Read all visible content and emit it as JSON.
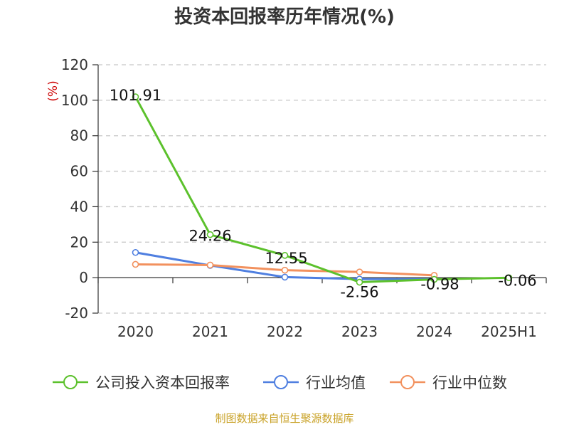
{
  "title": "投资本回报率历年情况(%)",
  "source": "制图数据来自恒生聚源数据库",
  "chart_data": {
    "type": "line",
    "categories": [
      "2020",
      "2021",
      "2022",
      "2023",
      "2024",
      "2025H1"
    ],
    "ylabel": "(%)",
    "ylim": [
      -20,
      120
    ],
    "yticks": [
      120,
      100,
      80,
      60,
      40,
      20,
      0,
      -20
    ],
    "grid": true,
    "legend": "bottom",
    "series": [
      {
        "name": "公司投入资本回报率",
        "color": "#5cc12c",
        "values": [
          101.91,
          24.26,
          12.55,
          -2.56,
          -0.98,
          -0.06
        ],
        "labels": [
          "101.91",
          "24.26",
          "12.55",
          "-2.56",
          "-0.98",
          "-0.06"
        ]
      },
      {
        "name": "行业均值",
        "color": "#4f7fe0",
        "values": [
          14.2,
          6.9,
          0.3,
          -0.8,
          -0.9,
          null
        ]
      },
      {
        "name": "行业中位数",
        "color": "#f2915e",
        "values": [
          7.5,
          7.1,
          4.2,
          3.2,
          1.3,
          null
        ]
      }
    ]
  }
}
